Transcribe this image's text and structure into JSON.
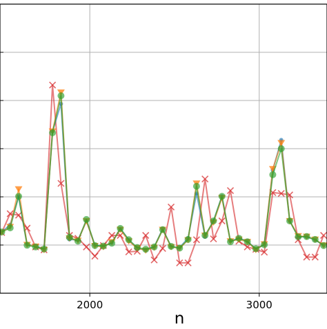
{
  "chart_data": {
    "type": "line",
    "xlabel": "n",
    "ylabel": "",
    "title": "",
    "xlim": [
      1470,
      3400
    ],
    "ylim": [
      0,
      1
    ],
    "x_ticks": [
      2000,
      3000
    ],
    "x_tick_labels": [
      "2000",
      "3000"
    ],
    "y_ticks": [
      0.0,
      0.1667,
      0.3333,
      0.5,
      0.6667,
      0.8333,
      1.0
    ],
    "grid": true,
    "x": [
      1480,
      1530,
      1580,
      1630,
      1680,
      1730,
      1780,
      1830,
      1880,
      1930,
      1980,
      2030,
      2080,
      2130,
      2180,
      2230,
      2280,
      2330,
      2380,
      2430,
      2480,
      2530,
      2580,
      2630,
      2680,
      2730,
      2780,
      2830,
      2880,
      2930,
      2980,
      3030,
      3080,
      3130,
      3180,
      3230,
      3280,
      3330,
      3380
    ],
    "series": [
      {
        "color": "#1f77b4",
        "marker": "dot",
        "values": [
          0.212,
          0.237,
          0.335,
          0.168,
          0.163,
          0.153,
          0.56,
          0.655,
          0.186,
          0.184,
          0.25,
          0.167,
          0.163,
          0.175,
          0.223,
          0.184,
          0.155,
          0.15,
          0.16,
          0.223,
          0.16,
          0.158,
          0.19,
          0.345,
          0.195,
          0.25,
          0.335,
          0.18,
          0.19,
          0.18,
          0.152,
          0.168,
          0.426,
          0.53,
          0.25,
          0.196,
          0.195,
          0.184,
          0.166
        ]
      },
      {
        "color": "#ff7f0e",
        "marker": "triangle-down",
        "values": [
          0.21,
          0.23,
          0.36,
          0.168,
          0.162,
          0.15,
          0.56,
          0.695,
          0.19,
          0.182,
          0.25,
          0.164,
          0.16,
          0.177,
          0.22,
          0.18,
          0.156,
          0.148,
          0.158,
          0.22,
          0.16,
          0.156,
          0.184,
          0.38,
          0.2,
          0.245,
          0.33,
          0.18,
          0.186,
          0.178,
          0.15,
          0.17,
          0.43,
          0.52,
          0.25,
          0.198,
          0.196,
          0.186,
          0.166
        ]
      },
      {
        "color": "#2ca02c",
        "marker": "dot",
        "values": [
          0.212,
          0.226,
          0.335,
          0.166,
          0.16,
          0.153,
          0.555,
          0.683,
          0.193,
          0.18,
          0.255,
          0.165,
          0.163,
          0.173,
          0.224,
          0.185,
          0.158,
          0.152,
          0.16,
          0.22,
          0.162,
          0.156,
          0.186,
          0.37,
          0.2,
          0.25,
          0.335,
          0.178,
          0.19,
          0.178,
          0.154,
          0.168,
          0.41,
          0.5,
          0.25,
          0.195,
          0.196,
          0.186,
          0.165
        ]
      },
      {
        "color": "#d62728",
        "marker": "x",
        "values": [
          0.21,
          0.275,
          0.27,
          0.225,
          0.16,
          0.15,
          0.72,
          0.38,
          0.2,
          0.19,
          0.16,
          0.128,
          0.165,
          0.2,
          0.2,
          0.143,
          0.145,
          0.2,
          0.115,
          0.155,
          0.298,
          0.105,
          0.105,
          0.185,
          0.395,
          0.188,
          0.25,
          0.355,
          0.18,
          0.16,
          0.152,
          0.142,
          0.348,
          0.345,
          0.34,
          0.185,
          0.125,
          0.125,
          0.2
        ]
      }
    ]
  }
}
